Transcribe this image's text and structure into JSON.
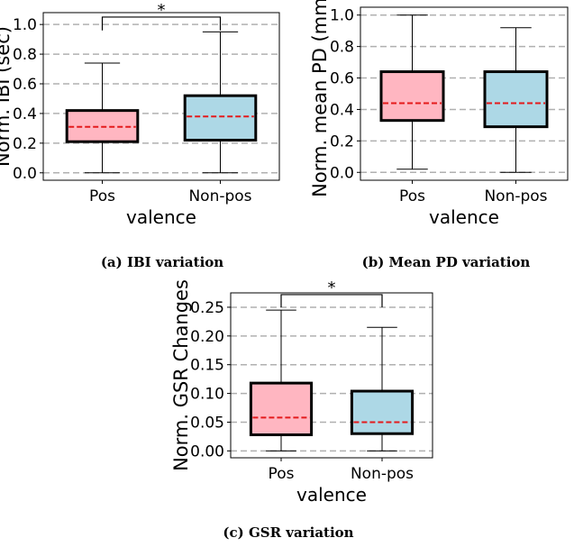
{
  "colors": {
    "pos_fill": "#ffb6c1",
    "nonpos_fill": "#add8e6",
    "median": "#e41a1c",
    "grid": "#b0b0b0",
    "box_edge": "#000000"
  },
  "captions": {
    "a": "(a) IBI variation",
    "b": "(b) Mean PD variation",
    "c": "(c) GSR variation"
  },
  "chart_data": [
    {
      "id": "a",
      "type": "boxplot",
      "xlabel": "valence",
      "ylabel": "Norm. IBI (sec)",
      "categories": [
        "Pos",
        "Non-pos"
      ],
      "ylim": [
        -0.05,
        1.08
      ],
      "yticks": [
        0.0,
        0.2,
        0.4,
        0.6,
        0.8,
        1.0
      ],
      "tick_decimals": 1,
      "grid": "horizontal-dashed",
      "boxes": [
        {
          "name": "Pos",
          "whisker_low": 0.0,
          "q1": 0.21,
          "median": 0.31,
          "q3": 0.42,
          "whisker_high": 0.74
        },
        {
          "name": "Non-pos",
          "whisker_low": 0.0,
          "q1": 0.22,
          "median": 0.38,
          "q3": 0.52,
          "whisker_high": 0.95
        }
      ],
      "significance": {
        "label": "*",
        "y": 1.05,
        "drop": 0.96
      }
    },
    {
      "id": "b",
      "type": "boxplot",
      "xlabel": "valence",
      "ylabel": "Norm. mean PD (mm)",
      "categories": [
        "Pos",
        "Non-pos"
      ],
      "ylim": [
        -0.05,
        1.05
      ],
      "yticks": [
        0.0,
        0.2,
        0.4,
        0.6,
        0.8,
        1.0
      ],
      "tick_decimals": 1,
      "grid": "horizontal-dashed",
      "boxes": [
        {
          "name": "Pos",
          "whisker_low": 0.02,
          "q1": 0.33,
          "median": 0.44,
          "q3": 0.64,
          "whisker_high": 1.0
        },
        {
          "name": "Non-pos",
          "whisker_low": 0.0,
          "q1": 0.29,
          "median": 0.44,
          "q3": 0.64,
          "whisker_high": 0.92
        }
      ]
    },
    {
      "id": "c",
      "type": "boxplot",
      "xlabel": "valence",
      "ylabel": "Norm. GSR Changes",
      "categories": [
        "Pos",
        "Non-pos"
      ],
      "ylim": [
        -0.012,
        0.275
      ],
      "yticks": [
        0.0,
        0.05,
        0.1,
        0.15,
        0.2,
        0.25
      ],
      "tick_decimals": 2,
      "grid": "horizontal-dashed",
      "boxes": [
        {
          "name": "Pos",
          "whisker_low": 0.0,
          "q1": 0.028,
          "median": 0.058,
          "q3": 0.118,
          "whisker_high": 0.245
        },
        {
          "name": "Non-pos",
          "whisker_low": 0.0,
          "q1": 0.03,
          "median": 0.05,
          "q3": 0.104,
          "whisker_high": 0.215
        }
      ],
      "significance": {
        "label": "*",
        "y": 0.272,
        "drop": 0.25
      }
    }
  ]
}
